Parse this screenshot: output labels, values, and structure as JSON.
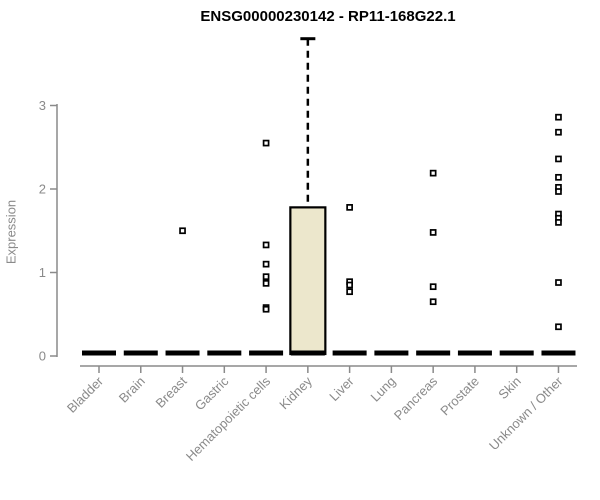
{
  "chart_data": {
    "type": "boxplot",
    "title": "ENSG00000230142 - RP11-168G22.1",
    "ylabel": "Expression",
    "xlabel": "",
    "ylim": [
      0,
      3
    ],
    "yticks": [
      0,
      1,
      2,
      3
    ],
    "grid": false,
    "legend": "none",
    "categories": [
      "Bladder",
      "Brain",
      "Breast",
      "Gastric",
      "Hematopoietic cells",
      "Kidney",
      "Liver",
      "Lung",
      "Pancreas",
      "Prostate",
      "Skin",
      "Unknown / Other"
    ],
    "boxes": [
      {
        "category": "Bladder",
        "median": 0,
        "q1": 0,
        "q3": 0,
        "whisker_low": 0,
        "whisker_high": 0,
        "outliers": []
      },
      {
        "category": "Brain",
        "median": 0,
        "q1": 0,
        "q3": 0,
        "whisker_low": 0,
        "whisker_high": 0,
        "outliers": []
      },
      {
        "category": "Breast",
        "median": 0,
        "q1": 0,
        "q3": 0,
        "whisker_low": 0,
        "whisker_high": 0,
        "outliers": [
          1.5
        ]
      },
      {
        "category": "Gastric",
        "median": 0,
        "q1": 0,
        "q3": 0,
        "whisker_low": 0,
        "whisker_high": 0,
        "outliers": []
      },
      {
        "category": "Hematopoietic cells",
        "median": 0,
        "q1": 0,
        "q3": 0,
        "whisker_low": 0,
        "whisker_high": 0,
        "outliers": [
          2.55,
          1.33,
          1.1,
          0.95,
          0.87,
          0.58,
          0.56
        ]
      },
      {
        "category": "Kidney",
        "median": 0,
        "q1": 0,
        "q3": 1.78,
        "whisker_low": 0,
        "whisker_high": 3.8,
        "outliers": []
      },
      {
        "category": "Liver",
        "median": 0,
        "q1": 0,
        "q3": 0,
        "whisker_low": 0,
        "whisker_high": 0,
        "outliers": [
          1.78,
          0.89,
          0.85,
          0.77
        ]
      },
      {
        "category": "Lung",
        "median": 0,
        "q1": 0,
        "q3": 0,
        "whisker_low": 0,
        "whisker_high": 0,
        "outliers": []
      },
      {
        "category": "Pancreas",
        "median": 0,
        "q1": 0,
        "q3": 0,
        "whisker_low": 0,
        "whisker_high": 0,
        "outliers": [
          2.19,
          1.48,
          0.83,
          0.65
        ]
      },
      {
        "category": "Prostate",
        "median": 0,
        "q1": 0,
        "q3": 0,
        "whisker_low": 0,
        "whisker_high": 0,
        "outliers": []
      },
      {
        "category": "Skin",
        "median": 0,
        "q1": 0,
        "q3": 0,
        "whisker_low": 0,
        "whisker_high": 0,
        "outliers": []
      },
      {
        "category": "Unknown / Other",
        "median": 0,
        "q1": 0,
        "q3": 0,
        "whisker_low": 0,
        "whisker_high": 0,
        "outliers": [
          2.86,
          2.68,
          2.36,
          2.14,
          2.02,
          1.97,
          1.7,
          1.65,
          1.6,
          0.88,
          0.35
        ]
      }
    ],
    "colors": {
      "box_fill": "#ece7cc",
      "box_border": "#000000",
      "axis": "#8a8a8a",
      "tick_label": "#8a8a8a",
      "point": "#000000",
      "background": "#ffffff"
    }
  }
}
